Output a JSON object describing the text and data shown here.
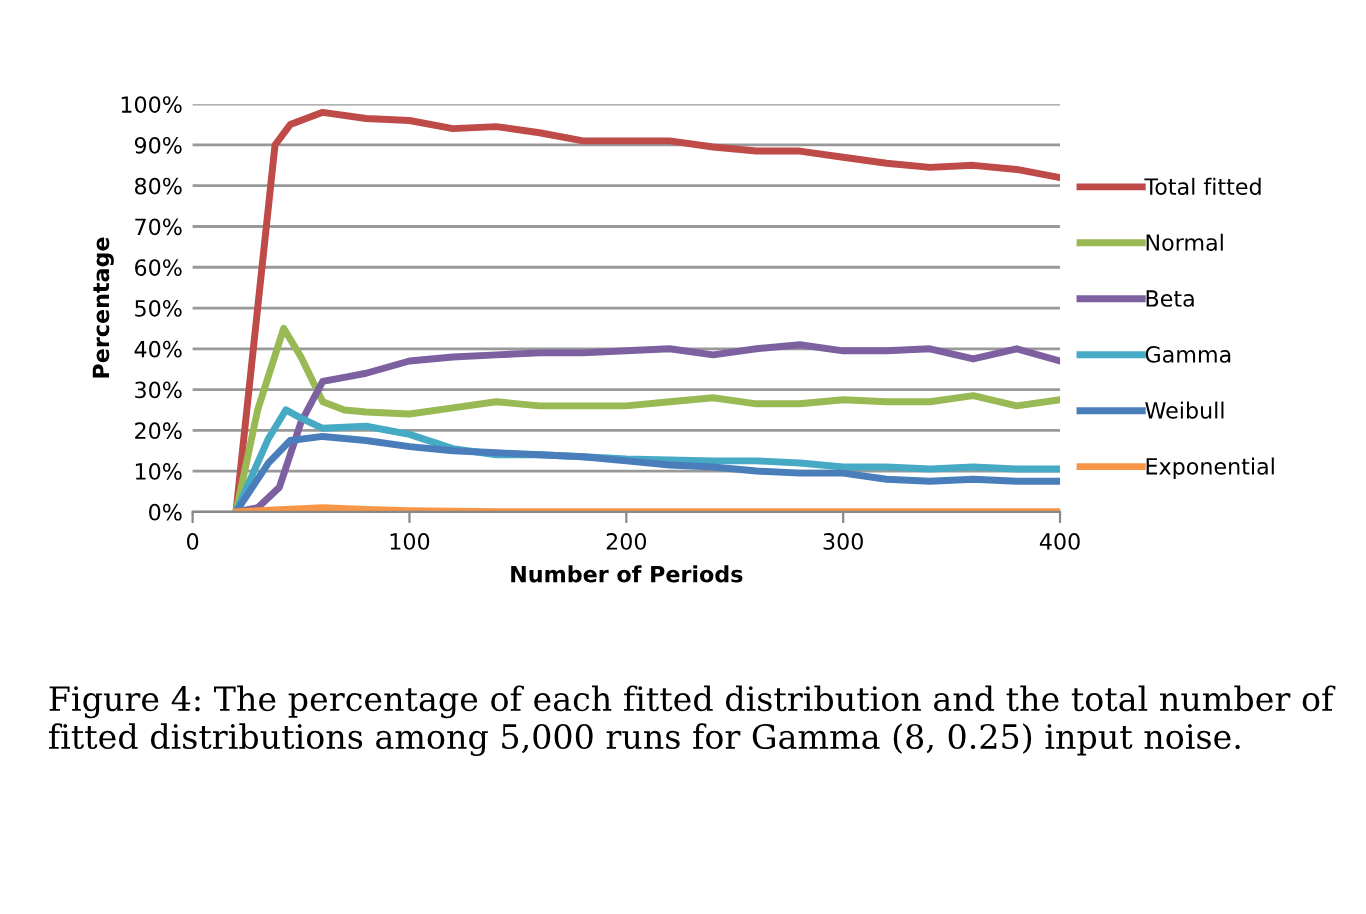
{
  "chart_data": {
    "type": "line",
    "xlabel": "Number of Periods",
    "ylabel": "Percentage",
    "xlim": [
      0,
      400
    ],
    "xticks": [
      0,
      100,
      200,
      300,
      400
    ],
    "ylim": [
      0,
      100
    ],
    "yticks": [
      {
        "value": 0,
        "label": "0%"
      },
      {
        "value": 10,
        "label": "10%"
      },
      {
        "value": 20,
        "label": "20%"
      },
      {
        "value": 30,
        "label": "30%"
      },
      {
        "value": 40,
        "label": "40%"
      },
      {
        "value": 50,
        "label": "50%"
      },
      {
        "value": 60,
        "label": "60%"
      },
      {
        "value": 70,
        "label": "70%"
      },
      {
        "value": 80,
        "label": "80%"
      },
      {
        "value": 90,
        "label": "90%"
      },
      {
        "value": 100,
        "label": "100%"
      }
    ],
    "grid": "y",
    "legend": "right",
    "marker": "none",
    "line_style": "solid",
    "series": [
      {
        "name": "Total fitted",
        "color": "#be4b48",
        "x": [
          20,
          38,
          45,
          60,
          80,
          100,
          120,
          140,
          160,
          180,
          200,
          220,
          240,
          260,
          280,
          300,
          320,
          340,
          360,
          380,
          400
        ],
        "values": [
          0,
          90,
          95,
          98,
          96.5,
          96,
          94,
          94.5,
          93,
          91,
          91,
          91,
          89.5,
          88.5,
          88.5,
          87,
          85.5,
          84.5,
          85,
          84,
          82
        ]
      },
      {
        "name": "Normal",
        "color": "#98b954",
        "x": [
          20,
          30,
          42,
          50,
          60,
          70,
          80,
          100,
          120,
          140,
          160,
          180,
          200,
          220,
          240,
          260,
          280,
          300,
          320,
          340,
          360,
          380,
          400
        ],
        "values": [
          0,
          25,
          45,
          38,
          27,
          25,
          24.5,
          24,
          25.5,
          27,
          26,
          26,
          26,
          27,
          28,
          26.5,
          26.5,
          27.5,
          27,
          27,
          28.5,
          26,
          27.5
        ]
      },
      {
        "name": "Beta",
        "color": "#7d60a0",
        "x": [
          20,
          30,
          40,
          50,
          60,
          70,
          80,
          100,
          120,
          140,
          160,
          180,
          200,
          220,
          240,
          260,
          280,
          300,
          320,
          340,
          360,
          380,
          400
        ],
        "values": [
          0,
          1,
          6,
          22,
          32,
          33,
          34,
          37,
          38,
          38.5,
          39,
          39,
          39.5,
          40,
          38.5,
          40,
          41,
          39.5,
          39.5,
          40,
          37.5,
          40,
          37
        ]
      },
      {
        "name": "Gamma",
        "color": "#46aac5",
        "x": [
          20,
          35,
          43,
          50,
          60,
          80,
          100,
          120,
          140,
          160,
          180,
          200,
          240,
          260,
          280,
          300,
          320,
          340,
          360,
          380,
          400
        ],
        "values": [
          0,
          18,
          25,
          23,
          20.5,
          21,
          19,
          15.5,
          14,
          14,
          13.5,
          13,
          12.5,
          12.5,
          12,
          11,
          11,
          10.5,
          11,
          10.5,
          10.5
        ]
      },
      {
        "name": "Weibull",
        "color": "#4a7ebb",
        "x": [
          20,
          35,
          45,
          60,
          80,
          100,
          120,
          140,
          160,
          180,
          200,
          220,
          240,
          260,
          280,
          300,
          320,
          340,
          360,
          380,
          400
        ],
        "values": [
          0,
          12,
          17.5,
          18.5,
          17.5,
          16,
          15,
          14.5,
          14,
          13.5,
          12.5,
          11.5,
          11,
          10,
          9.5,
          9.5,
          8,
          7.5,
          8,
          7.5,
          7.5
        ]
      },
      {
        "name": "Exponential",
        "color": "#f79646",
        "x": [
          20,
          40,
          60,
          80,
          100,
          140,
          200,
          300,
          400
        ],
        "values": [
          0,
          0.5,
          1,
          0.6,
          0.3,
          0,
          0,
          0,
          0
        ]
      }
    ],
    "annotations": [
      "Figure 4: The percentage of each fitted distribution and the total number of fitted distributions among 5,000 runs for Gamma (8, 0.25) input noise."
    ]
  }
}
